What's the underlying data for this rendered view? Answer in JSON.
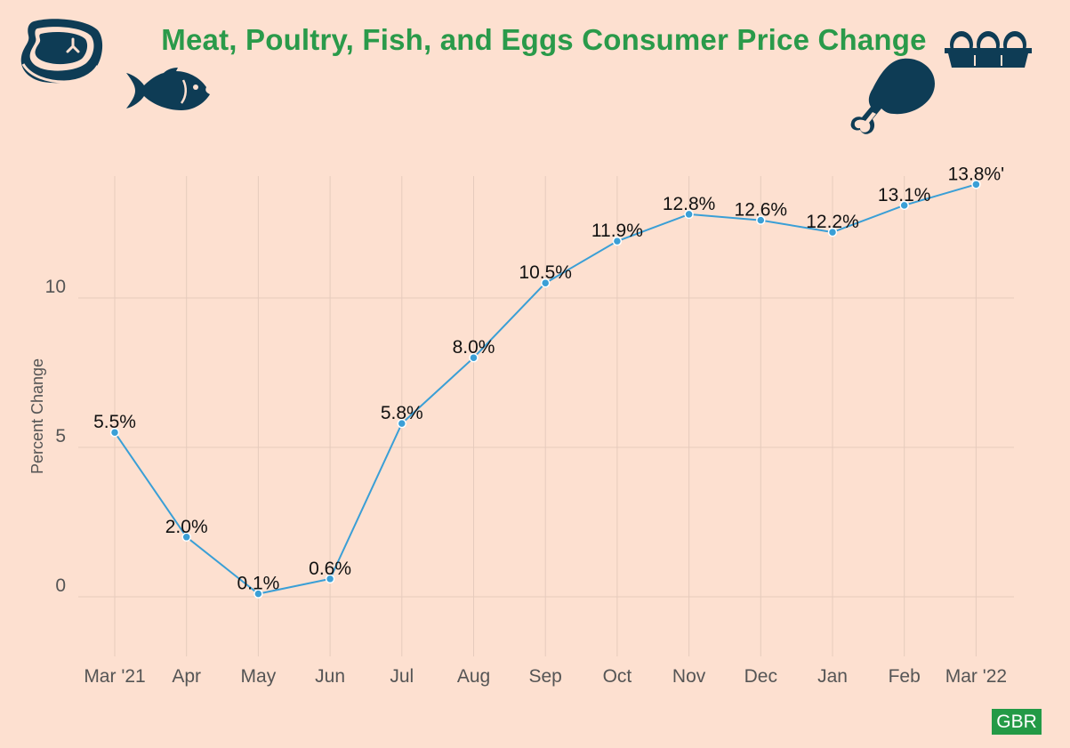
{
  "header": {
    "title": "Meat, Poultry, Fish, and Eggs Consumer Price Change"
  },
  "icons": [
    "steak-icon",
    "fish-icon",
    "chicken-leg-icon",
    "egg-carton-icon"
  ],
  "colors": {
    "background": "#fde0d0",
    "title": "#2a9a4a",
    "line": "#3a9fd6",
    "icons": "#0e3c55",
    "badge": "#239a46"
  },
  "footer": {
    "badge": "GBR"
  },
  "chart_data": {
    "type": "line",
    "categories": [
      "Mar '21",
      "Apr",
      "May",
      "Jun",
      "Jul",
      "Aug",
      "Sep",
      "Oct",
      "Nov",
      "Dec",
      "Jan",
      "Feb",
      "Mar '22"
    ],
    "series": [
      {
        "values": [
          5.5,
          2.0,
          0.1,
          0.6,
          5.8,
          8.0,
          10.5,
          11.9,
          12.8,
          12.6,
          12.2,
          13.1,
          13.8
        ]
      }
    ],
    "data_labels": [
      "5.5%",
      "2.0%",
      "0.1%",
      "0.6%",
      "5.8%",
      "8.0%",
      "10.5%",
      "11.9%",
      "12.8%",
      "12.6%",
      "12.2%",
      "13.1%",
      "13.8%'"
    ],
    "ylabel": "Percent Change",
    "yticks": [
      0,
      5,
      10
    ],
    "ylim": [
      -2,
      14
    ],
    "grid": true,
    "legend": "none"
  }
}
